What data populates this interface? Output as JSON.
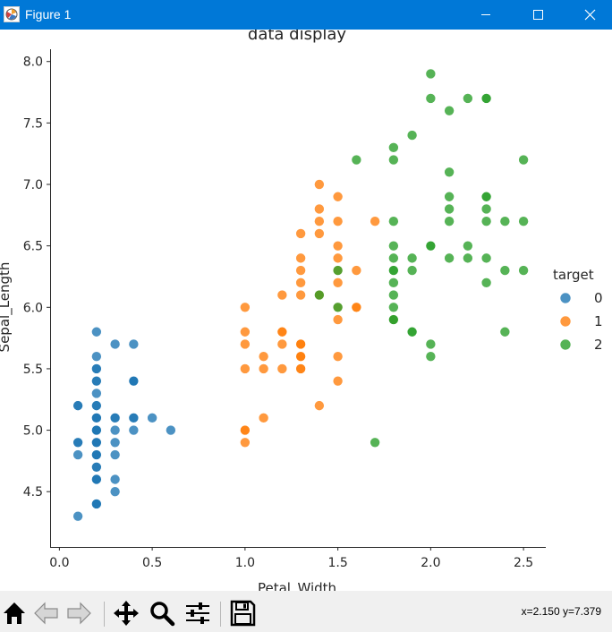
{
  "window": {
    "title": "Figure 1",
    "icon": "matplotlib-figure-icon",
    "controls": [
      "minimize-icon",
      "maximize-icon",
      "close-icon"
    ],
    "titlebar_color": "#0078d7"
  },
  "toolbar": {
    "buttons": [
      "home-icon",
      "back-arrow-icon",
      "forward-arrow-icon",
      "move-arrows-icon",
      "magnifier-icon",
      "sliders-icon",
      "floppy-disk-icon"
    ],
    "coordinates": "x=2.150 y=7.379"
  },
  "chart_data": {
    "type": "scatter",
    "title": "data display",
    "xlabel": "Petal_Width",
    "ylabel": "Sepal_Length",
    "xlim": [
      -0.05,
      2.62
    ],
    "ylim": [
      4.05,
      8.1
    ],
    "xticks": [
      "0.0",
      "0.5",
      "1.0",
      "1.5",
      "2.0",
      "2.5"
    ],
    "yticks": [
      "4.5",
      "5.0",
      "5.5",
      "6.0",
      "6.5",
      "7.0",
      "7.5",
      "8.0"
    ],
    "grid": false,
    "legend": {
      "title": "target",
      "placement": "right",
      "entries": [
        "0",
        "1",
        "2"
      ]
    },
    "series": [
      {
        "name": "0",
        "color": "#1f77b4",
        "points": [
          [
            0.2,
            5.1
          ],
          [
            0.2,
            4.9
          ],
          [
            0.2,
            4.7
          ],
          [
            0.2,
            4.6
          ],
          [
            0.2,
            5.0
          ],
          [
            0.4,
            5.4
          ],
          [
            0.3,
            4.6
          ],
          [
            0.2,
            5.0
          ],
          [
            0.2,
            4.4
          ],
          [
            0.1,
            4.9
          ],
          [
            0.2,
            5.4
          ],
          [
            0.2,
            4.8
          ],
          [
            0.1,
            4.8
          ],
          [
            0.1,
            4.3
          ],
          [
            0.2,
            5.8
          ],
          [
            0.4,
            5.7
          ],
          [
            0.4,
            5.4
          ],
          [
            0.3,
            5.1
          ],
          [
            0.3,
            5.7
          ],
          [
            0.3,
            5.1
          ],
          [
            0.2,
            5.4
          ],
          [
            0.4,
            5.1
          ],
          [
            0.2,
            4.6
          ],
          [
            0.5,
            5.1
          ],
          [
            0.2,
            4.8
          ],
          [
            0.2,
            5.0
          ],
          [
            0.4,
            5.0
          ],
          [
            0.2,
            5.2
          ],
          [
            0.2,
            5.2
          ],
          [
            0.2,
            4.7
          ],
          [
            0.2,
            4.8
          ],
          [
            0.4,
            5.4
          ],
          [
            0.1,
            5.2
          ],
          [
            0.2,
            5.5
          ],
          [
            0.2,
            4.9
          ],
          [
            0.2,
            5.0
          ],
          [
            0.2,
            5.5
          ],
          [
            0.1,
            4.9
          ],
          [
            0.2,
            4.4
          ],
          [
            0.2,
            5.1
          ],
          [
            0.3,
            5.0
          ],
          [
            0.3,
            4.5
          ],
          [
            0.2,
            4.4
          ],
          [
            0.6,
            5.0
          ],
          [
            0.4,
            5.1
          ],
          [
            0.3,
            4.8
          ],
          [
            0.2,
            5.1
          ],
          [
            0.2,
            4.6
          ],
          [
            0.2,
            5.3
          ],
          [
            0.2,
            5.0
          ],
          [
            0.1,
            5.2
          ],
          [
            0.2,
            5.6
          ],
          [
            0.3,
            4.9
          ],
          [
            0.2,
            4.9
          ]
        ]
      },
      {
        "name": "1",
        "color": "#ff7f0e",
        "points": [
          [
            1.4,
            7.0
          ],
          [
            1.5,
            6.4
          ],
          [
            1.5,
            6.9
          ],
          [
            1.3,
            5.5
          ],
          [
            1.5,
            6.5
          ],
          [
            1.3,
            5.7
          ],
          [
            1.6,
            6.3
          ],
          [
            1.0,
            4.9
          ],
          [
            1.3,
            6.6
          ],
          [
            1.4,
            5.2
          ],
          [
            1.0,
            5.0
          ],
          [
            1.5,
            5.9
          ],
          [
            1.0,
            6.0
          ],
          [
            1.4,
            6.1
          ],
          [
            1.3,
            5.6
          ],
          [
            1.4,
            6.7
          ],
          [
            1.5,
            5.6
          ],
          [
            1.0,
            5.8
          ],
          [
            1.5,
            6.2
          ],
          [
            1.1,
            5.6
          ],
          [
            1.8,
            5.9
          ],
          [
            1.3,
            6.1
          ],
          [
            1.5,
            6.3
          ],
          [
            1.2,
            6.1
          ],
          [
            1.3,
            6.4
          ],
          [
            1.4,
            6.6
          ],
          [
            1.4,
            6.8
          ],
          [
            1.7,
            6.7
          ],
          [
            1.5,
            6.0
          ],
          [
            1.0,
            5.7
          ],
          [
            1.1,
            5.5
          ],
          [
            1.0,
            5.5
          ],
          [
            1.2,
            5.8
          ],
          [
            1.6,
            6.0
          ],
          [
            1.5,
            5.4
          ],
          [
            1.6,
            6.0
          ],
          [
            1.5,
            6.7
          ],
          [
            1.3,
            6.3
          ],
          [
            1.3,
            5.6
          ],
          [
            1.3,
            5.5
          ],
          [
            1.2,
            5.5
          ],
          [
            1.4,
            6.1
          ],
          [
            1.2,
            5.8
          ],
          [
            1.0,
            5.0
          ],
          [
            1.3,
            5.6
          ],
          [
            1.2,
            5.7
          ],
          [
            1.3,
            5.7
          ],
          [
            1.3,
            6.2
          ],
          [
            1.1,
            5.1
          ],
          [
            1.3,
            5.7
          ]
        ]
      },
      {
        "name": "2",
        "color": "#2ca02c",
        "points": [
          [
            2.5,
            6.3
          ],
          [
            1.9,
            5.8
          ],
          [
            2.1,
            7.1
          ],
          [
            1.8,
            6.3
          ],
          [
            2.2,
            6.5
          ],
          [
            2.1,
            7.6
          ],
          [
            1.7,
            4.9
          ],
          [
            1.8,
            7.3
          ],
          [
            1.8,
            6.7
          ],
          [
            2.5,
            7.2
          ],
          [
            2.0,
            6.5
          ],
          [
            1.9,
            6.4
          ],
          [
            2.1,
            6.8
          ],
          [
            2.0,
            5.7
          ],
          [
            2.4,
            5.8
          ],
          [
            2.3,
            6.4
          ],
          [
            1.8,
            6.5
          ],
          [
            2.2,
            7.7
          ],
          [
            2.3,
            7.7
          ],
          [
            1.5,
            6.0
          ],
          [
            2.3,
            6.9
          ],
          [
            2.0,
            5.6
          ],
          [
            2.0,
            7.7
          ],
          [
            1.8,
            6.3
          ],
          [
            2.1,
            6.7
          ],
          [
            1.8,
            7.2
          ],
          [
            1.8,
            6.2
          ],
          [
            1.8,
            6.1
          ],
          [
            2.1,
            6.4
          ],
          [
            1.6,
            7.2
          ],
          [
            1.9,
            7.4
          ],
          [
            2.0,
            7.9
          ],
          [
            2.2,
            6.4
          ],
          [
            1.5,
            6.3
          ],
          [
            1.4,
            6.1
          ],
          [
            2.3,
            7.7
          ],
          [
            2.4,
            6.3
          ],
          [
            1.8,
            6.4
          ],
          [
            1.8,
            6.0
          ],
          [
            2.1,
            6.9
          ],
          [
            2.4,
            6.7
          ],
          [
            2.3,
            6.9
          ],
          [
            1.9,
            5.8
          ],
          [
            2.3,
            6.8
          ],
          [
            2.5,
            6.7
          ],
          [
            2.3,
            6.7
          ],
          [
            1.9,
            6.3
          ],
          [
            2.0,
            6.5
          ],
          [
            2.3,
            6.2
          ],
          [
            1.8,
            5.9
          ],
          [
            1.8,
            5.9
          ]
        ]
      }
    ]
  }
}
